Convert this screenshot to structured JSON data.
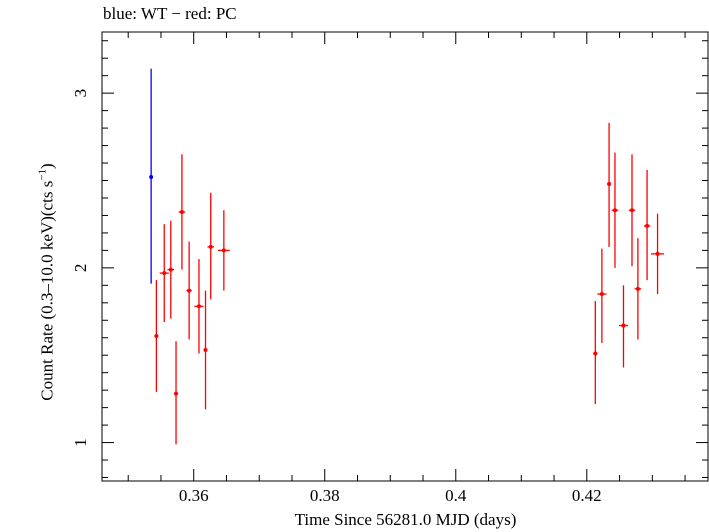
{
  "chart_data": {
    "type": "scatter",
    "title": "blue: WT − red: PC",
    "xlabel": "Time Since 56281.0 MJD (days)",
    "ylabel_main": "Count Rate (0.3–10.0 keV)(cts s",
    "ylabel_sup": "−1",
    "ylabel_end": ")",
    "xlim": [
      0.346,
      0.4385
    ],
    "ylim": [
      0.78,
      3.35
    ],
    "xticks": [
      0.36,
      0.38,
      0.4,
      0.42
    ],
    "xtick_labels": [
      "0.36",
      "0.38",
      "0.4",
      "0.42"
    ],
    "yticks": [
      1,
      2,
      3
    ],
    "ytick_labels": [
      "1",
      "2",
      "3"
    ],
    "colors": {
      "WT": "#0000ff",
      "PC": "#ff0000"
    },
    "series": [
      {
        "mode": "WT",
        "points": [
          {
            "x": 0.3535,
            "xerr": 0.0001,
            "y": 2.52,
            "ylo": 1.91,
            "yhi": 3.14
          }
        ]
      },
      {
        "mode": "PC",
        "points": [
          {
            "x": 0.3543,
            "xerr": 0.0003,
            "y": 1.61,
            "ylo": 1.29,
            "yhi": 1.93
          },
          {
            "x": 0.3555,
            "xerr": 0.0007,
            "y": 1.97,
            "ylo": 1.69,
            "yhi": 2.25
          },
          {
            "x": 0.3565,
            "xerr": 0.0005,
            "y": 1.99,
            "ylo": 1.71,
            "yhi": 2.27
          },
          {
            "x": 0.3573,
            "xerr": 0.0003,
            "y": 1.28,
            "ylo": 0.99,
            "yhi": 1.58
          },
          {
            "x": 0.3582,
            "xerr": 0.0005,
            "y": 2.32,
            "ylo": 1.99,
            "yhi": 2.65
          },
          {
            "x": 0.3593,
            "xerr": 0.0004,
            "y": 1.87,
            "ylo": 1.59,
            "yhi": 2.15
          },
          {
            "x": 0.3608,
            "xerr": 0.0007,
            "y": 1.78,
            "ylo": 1.51,
            "yhi": 2.05
          },
          {
            "x": 0.3618,
            "xerr": 0.0003,
            "y": 1.53,
            "ylo": 1.19,
            "yhi": 1.87
          },
          {
            "x": 0.3626,
            "xerr": 0.0005,
            "y": 2.12,
            "ylo": 1.82,
            "yhi": 2.43
          },
          {
            "x": 0.3646,
            "xerr": 0.0009,
            "y": 2.1,
            "ylo": 1.87,
            "yhi": 2.33
          },
          {
            "x": 0.4213,
            "xerr": 0.0003,
            "y": 1.51,
            "ylo": 1.22,
            "yhi": 1.81
          },
          {
            "x": 0.4223,
            "xerr": 0.0007,
            "y": 1.85,
            "ylo": 1.57,
            "yhi": 2.11
          },
          {
            "x": 0.4234,
            "xerr": 0.0003,
            "y": 2.48,
            "ylo": 2.12,
            "yhi": 2.83
          },
          {
            "x": 0.4243,
            "xerr": 0.0005,
            "y": 2.33,
            "ylo": 2.0,
            "yhi": 2.66
          },
          {
            "x": 0.4256,
            "xerr": 0.0007,
            "y": 1.67,
            "ylo": 1.43,
            "yhi": 1.9
          },
          {
            "x": 0.4269,
            "xerr": 0.0005,
            "y": 2.33,
            "ylo": 2.01,
            "yhi": 2.65
          },
          {
            "x": 0.4278,
            "xerr": 0.0005,
            "y": 1.88,
            "ylo": 1.59,
            "yhi": 2.17
          },
          {
            "x": 0.4292,
            "xerr": 0.0005,
            "y": 2.24,
            "ylo": 1.93,
            "yhi": 2.56
          },
          {
            "x": 0.4308,
            "xerr": 0.001,
            "y": 2.08,
            "ylo": 1.85,
            "yhi": 2.31
          }
        ]
      }
    ]
  }
}
